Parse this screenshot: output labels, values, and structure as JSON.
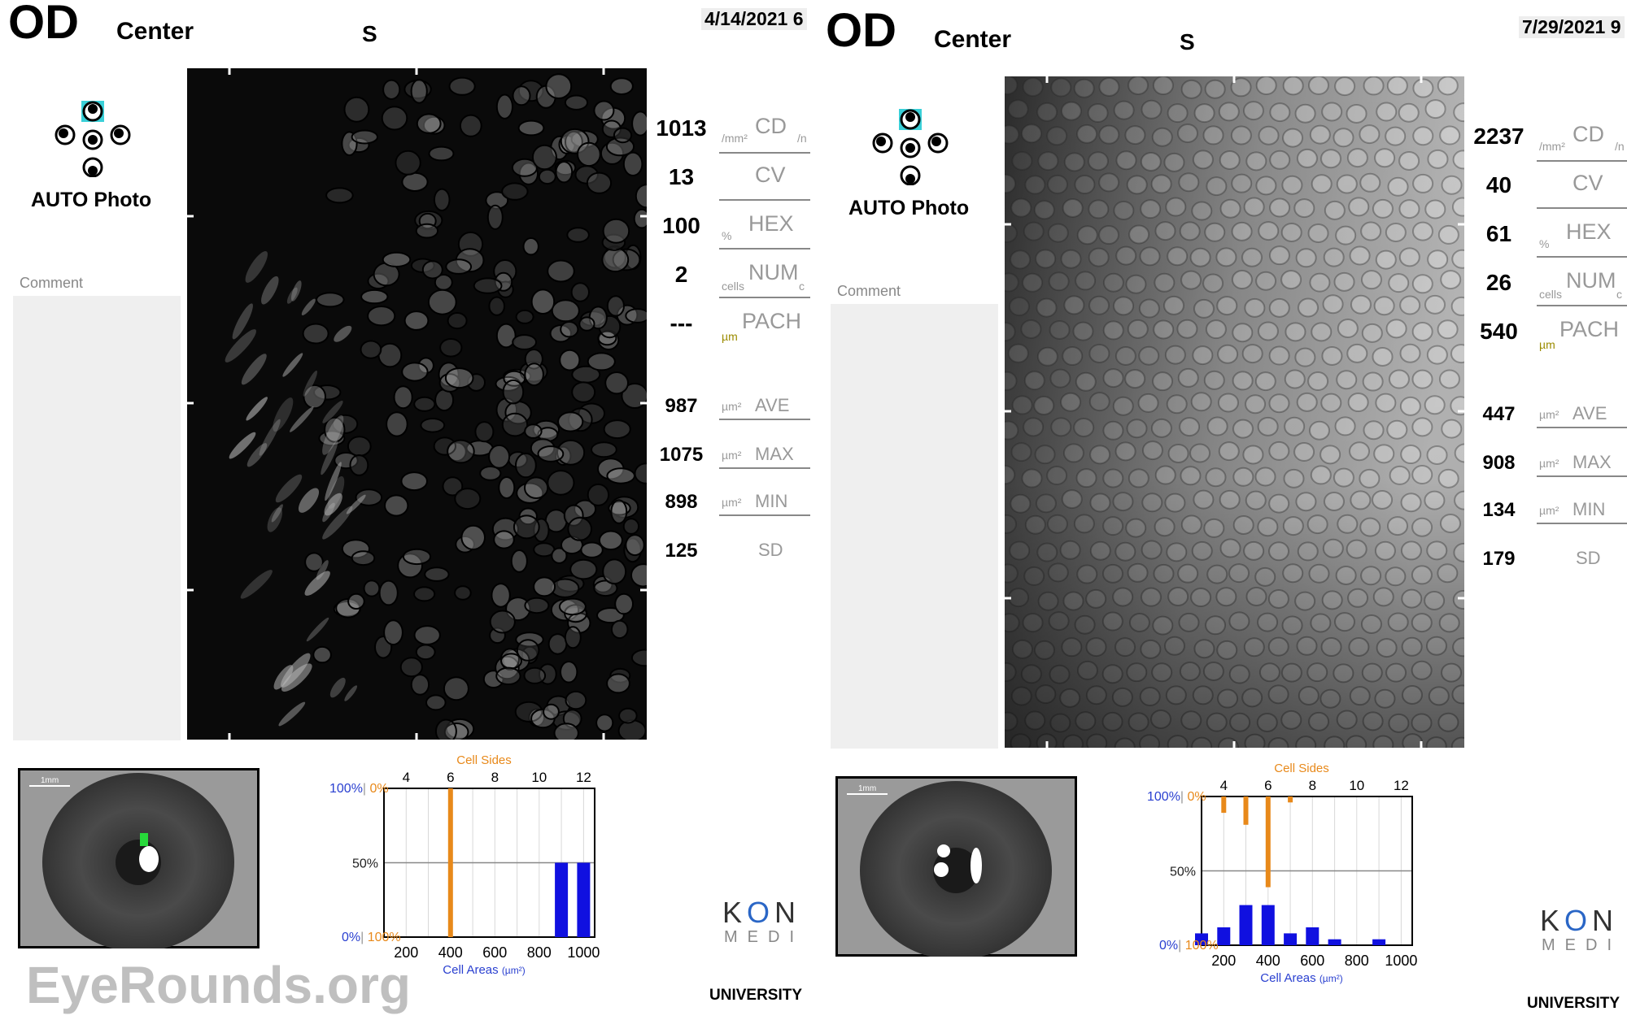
{
  "panels": [
    {
      "eye": "OD",
      "location": "Center",
      "direction": "S",
      "date": "4/14/2021 6",
      "auto_label": "AUTO Photo",
      "comment_label": "Comment",
      "image_brightness": "dark",
      "measures": {
        "cd": {
          "value": "1013",
          "label": "CD",
          "unit": "/mm²",
          "unit2": "/n"
        },
        "cv": {
          "value": "13",
          "label": "CV"
        },
        "hex": {
          "value": "100",
          "label": "HEX",
          "unit": "%"
        },
        "num": {
          "value": "2",
          "label": "NUM",
          "unit": "cells",
          "unit2": "c"
        },
        "pach": {
          "value": "---",
          "label": "PACH",
          "unit": "µm"
        },
        "ave": {
          "value": "987",
          "label": "AVE",
          "unit": "µm²"
        },
        "max": {
          "value": "1075",
          "label": "MAX",
          "unit": "µm²"
        },
        "min": {
          "value": "898",
          "label": "MIN",
          "unit": "µm²"
        },
        "sd": {
          "value": "125",
          "label": "SD"
        }
      },
      "histogram": {
        "top_title": "Cell Sides",
        "bottom_title": "Cell Areas",
        "area_unit": "(µm²)",
        "left_100": "100%",
        "left_0_orange": "0%",
        "left_50": "50%",
        "left_0": "0%",
        "left_100_orange": "100%",
        "side_ticks": [
          "4",
          "6",
          "8",
          "10",
          "12"
        ],
        "area_ticks": [
          "200",
          "400",
          "600",
          "800",
          "1000"
        ]
      },
      "thumb_scale": "1mm",
      "logo_main": "KON",
      "logo_sub": "MEDI",
      "university": "UNIVERSITY"
    },
    {
      "eye": "OD",
      "location": "Center",
      "direction": "S",
      "date": "7/29/2021 9",
      "auto_label": "AUTO Photo",
      "comment_label": "Comment",
      "image_brightness": "bright",
      "measures": {
        "cd": {
          "value": "2237",
          "label": "CD",
          "unit": "/mm²",
          "unit2": "/n"
        },
        "cv": {
          "value": "40",
          "label": "CV"
        },
        "hex": {
          "value": "61",
          "label": "HEX",
          "unit": "%"
        },
        "num": {
          "value": "26",
          "label": "NUM",
          "unit": "cells",
          "unit2": "c"
        },
        "pach": {
          "value": "540",
          "label": "PACH",
          "unit": "µm"
        },
        "ave": {
          "value": "447",
          "label": "AVE",
          "unit": "µm²"
        },
        "max": {
          "value": "908",
          "label": "MAX",
          "unit": "µm²"
        },
        "min": {
          "value": "134",
          "label": "MIN",
          "unit": "µm²"
        },
        "sd": {
          "value": "179",
          "label": "SD"
        }
      },
      "histogram": {
        "top_title": "Cell Sides",
        "bottom_title": "Cell Areas",
        "area_unit": "(µm²)",
        "left_100": "100%",
        "left_0_orange": "0%",
        "left_50": "50%",
        "left_0": "0%",
        "left_100_orange": "100%",
        "side_ticks": [
          "4",
          "6",
          "8",
          "10",
          "12"
        ],
        "area_ticks": [
          "200",
          "400",
          "600",
          "800",
          "1000"
        ]
      },
      "thumb_scale": "1mm",
      "logo_main": "KON",
      "logo_sub": "MEDI",
      "university": "UNIVERSITY"
    }
  ],
  "watermark": "EyeRounds.org",
  "colors": {
    "sides": "#e8891a",
    "areas": "#1010e0",
    "blue_label": "#2a40d0",
    "orange_label": "#e8891a"
  },
  "chart_data": [
    {
      "type": "bar",
      "title": "",
      "cell_sides": {
        "x": [
          3,
          4,
          5,
          6,
          7,
          8,
          9,
          10,
          11,
          12
        ],
        "percent": [
          0,
          0,
          0,
          100,
          0,
          0,
          0,
          0,
          0,
          0
        ]
      },
      "cell_areas": {
        "x": [
          100,
          200,
          300,
          400,
          500,
          600,
          700,
          800,
          900,
          1000
        ],
        "percent": [
          0,
          0,
          0,
          0,
          0,
          0,
          0,
          0,
          50,
          50
        ]
      },
      "xlabel_top": "Cell Sides",
      "xlabel_bottom": "Cell Areas (µm²)",
      "xlim_sides": [
        3,
        12.5
      ],
      "xlim_areas": [
        100,
        1050
      ],
      "ylim": [
        0,
        100
      ]
    },
    {
      "type": "bar",
      "title": "",
      "cell_sides": {
        "x": [
          3,
          4,
          5,
          6,
          7,
          8,
          9,
          10,
          11,
          12
        ],
        "percent": [
          0,
          11,
          19,
          61,
          4,
          0,
          0,
          0,
          0,
          0
        ]
      },
      "cell_areas": {
        "x": [
          100,
          200,
          300,
          400,
          500,
          600,
          700,
          800,
          900,
          1000
        ],
        "percent": [
          8,
          12,
          27,
          27,
          8,
          12,
          4,
          0,
          4,
          0
        ]
      },
      "xlabel_top": "Cell Sides",
      "xlabel_bottom": "Cell Areas (µm²)",
      "xlim_sides": [
        3,
        12.5
      ],
      "xlim_areas": [
        100,
        1050
      ],
      "ylim": [
        0,
        100
      ]
    }
  ]
}
